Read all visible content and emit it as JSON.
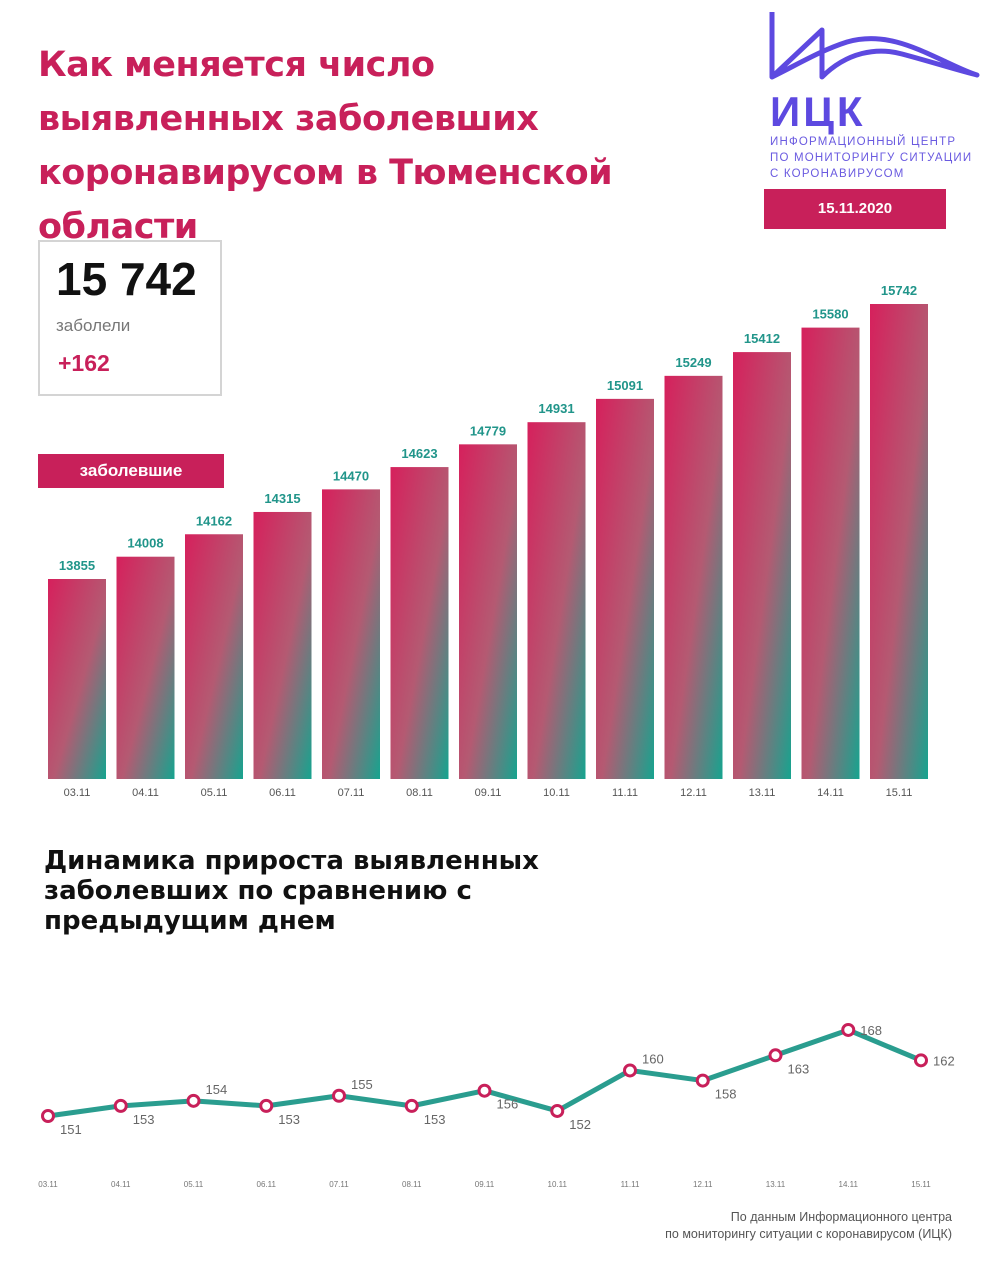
{
  "title": "Как меняется число выявленных заболевших коронавирусом в Тюменской области",
  "logo": {
    "name": "ИЦК",
    "subtitle_lines": [
      "Информационный центр",
      "по мониторингу ситуации",
      "с коронавирусом"
    ],
    "color": "#5d49e0"
  },
  "date": "15.11.2020",
  "kpi": {
    "value": "15 742",
    "label": "заболели",
    "delta": "+162"
  },
  "series_badge": "заболевшие",
  "colors": {
    "accent": "#c8205a",
    "teal": "#1aa391",
    "line": "#2a9d8f",
    "label_teal": "#21958a"
  },
  "chart_data": [
    {
      "type": "bar",
      "categories": [
        "03.11",
        "04.11",
        "05.11",
        "06.11",
        "07.11",
        "08.11",
        "09.11",
        "10.11",
        "11.11",
        "12.11",
        "13.11",
        "14.11",
        "15.11"
      ],
      "series": [
        {
          "name": "заболевшие",
          "values": [
            13855,
            14008,
            14162,
            14315,
            14470,
            14623,
            14779,
            14931,
            15091,
            15249,
            15412,
            15580,
            15742
          ]
        }
      ],
      "xlabel": "",
      "ylabel": "",
      "data_labels": true,
      "grid": false
    },
    {
      "type": "line",
      "title": "Динамика прироста выявленных заболевших по сравнению с предыдущим днем",
      "categories": [
        "03.11",
        "04.11",
        "05.11",
        "06.11",
        "07.11",
        "08.11",
        "09.11",
        "10.11",
        "11.11",
        "12.11",
        "13.11",
        "14.11",
        "15.11"
      ],
      "series": [
        {
          "values": [
            151,
            153,
            154,
            153,
            155,
            153,
            156,
            152,
            160,
            158,
            163,
            168,
            162
          ]
        }
      ],
      "xlabel": "",
      "ylabel": "",
      "data_labels": true,
      "grid": false
    }
  ],
  "source_lines": [
    "По данным Информационного центра",
    "по мониторингу ситуации с коронавирусом (ИЦК)"
  ]
}
